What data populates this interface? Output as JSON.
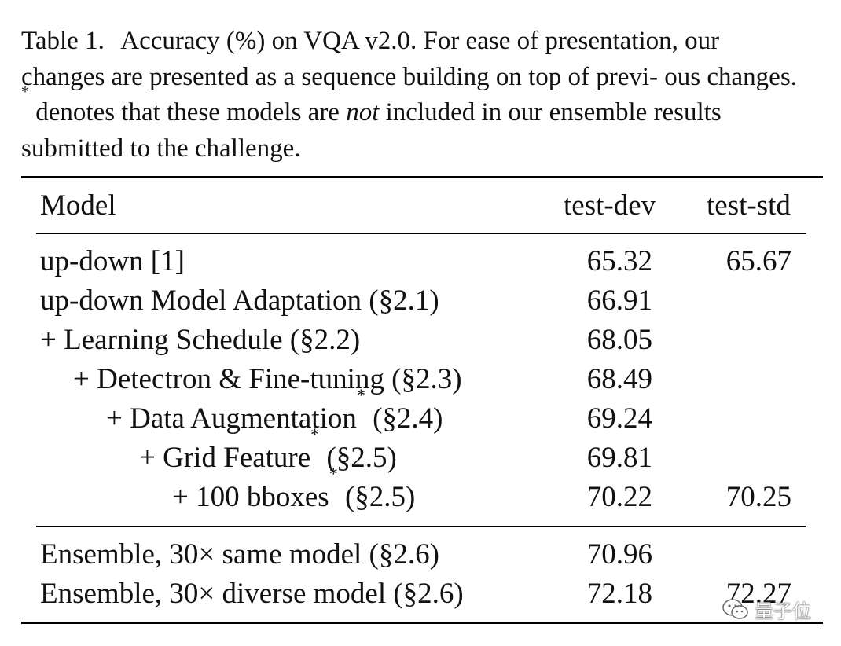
{
  "caption": {
    "label": "Table 1.",
    "text_1": "Accuracy (%) on VQA v2.0. For ease of presentation, our changes are presented as a sequence building on top of previ- ous changes.",
    "star": "*",
    "text_2": "denotes that these models are",
    "emph": "not",
    "text_3": "included in our ensemble results submitted to the challenge."
  },
  "table": {
    "headers": [
      "Model",
      "test-dev",
      "test-std"
    ],
    "group1": [
      {
        "model": "up-down [1]",
        "star": "",
        "ref": "",
        "dev": "65.32",
        "std": "65.67"
      },
      {
        "model": "up-down Model Adaptation (§2.1)",
        "star": "",
        "ref": "",
        "dev": "66.91",
        "std": ""
      },
      {
        "model": "+ Learning Schedule (§2.2)",
        "star": "",
        "ref": "",
        "dev": "68.05",
        "std": ""
      },
      {
        "model": "+ Detectron & Fine-tuning (§2.3)",
        "star": "",
        "ref": "",
        "dev": "68.49",
        "std": ""
      },
      {
        "model": "+ Data Augmentation",
        "star": "*",
        "ref": "(§2.4)",
        "dev": "69.24",
        "std": ""
      },
      {
        "model": "+ Grid Feature",
        "star": "*",
        "ref": "(§2.5)",
        "dev": "69.81",
        "std": ""
      },
      {
        "model": "+ 100 bboxes",
        "star": "*",
        "ref": "(§2.5)",
        "dev": "70.22",
        "std": "70.25"
      }
    ],
    "group2": [
      {
        "model": "Ensemble, 30× same model (§2.6)",
        "dev": "70.96",
        "std": ""
      },
      {
        "model": "Ensemble, 30× diverse model (§2.6)",
        "dev": "72.18",
        "std": "72.27"
      }
    ]
  },
  "watermark": {
    "text": "量子位",
    "icon": "wechat-icon"
  }
}
